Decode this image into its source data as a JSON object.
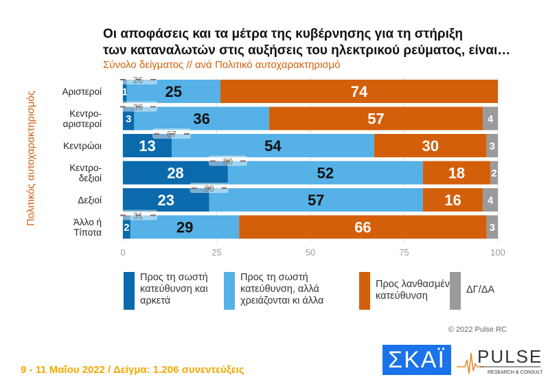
{
  "title_lines": [
    "Οι αποφάσεις και τα μέτρα της κυβέρνησης για τη στήριξη",
    "των καταναλωτών στις αυξήσεις του ηλεκτρικού ρεύματος, είναι…"
  ],
  "subtitle": "Σύνολο δείγματος // ανά Πολιτικό αυτοχαρακτηρισμό",
  "copyright": "© 2022 Pulse RC",
  "footer": "9 - 11  Μαΐου  2022  /  Δείγμα:  1.206 συνεντεύξεις",
  "logos": {
    "skai": "ΣΚΑΪ",
    "pulse": "PULSE",
    "pulse_sub": "RESEARCH & CONSULTING"
  },
  "chart_data": {
    "type": "bar",
    "orientation": "horizontal-stacked",
    "ylabel": "Πολιτικός αυτοχαρακτηρισμός",
    "xlim": [
      0,
      100
    ],
    "xticks": [
      0,
      25,
      50,
      75,
      100
    ],
    "grid": true,
    "legend_position": "bottom",
    "categories": [
      "Αριστεροί",
      "Κεντρο-\nαριστεροί",
      "Κεντρώοι",
      "Κεντρο-\nδεξιοί",
      "Δεξιοί",
      "Άλλο ή\nΤίποτα"
    ],
    "series": [
      {
        "name": "Προς τη σωστή κατεύθυνση και αρκετά",
        "color": "#0b6aab",
        "values": [
          1,
          3,
          13,
          28,
          23,
          2
        ]
      },
      {
        "name": "Προς τη σωστή κατεύθυνση, αλλά χρειάζονται κι άλλα",
        "color": "#56b1e6",
        "values": [
          25,
          36,
          54,
          52,
          57,
          29
        ]
      },
      {
        "name": "Προς λανθασμένη κατεύθυνση",
        "color": "#d45f0a",
        "values": [
          74,
          57,
          30,
          18,
          16,
          66
        ]
      },
      {
        "name": "ΔΓ/ΔΑ",
        "color": "#9a9a9a",
        "values": [
          null,
          4,
          3,
          2,
          4,
          3
        ]
      }
    ],
    "totals_positive": [
      26,
      39,
      67,
      80,
      80,
      31
    ]
  }
}
